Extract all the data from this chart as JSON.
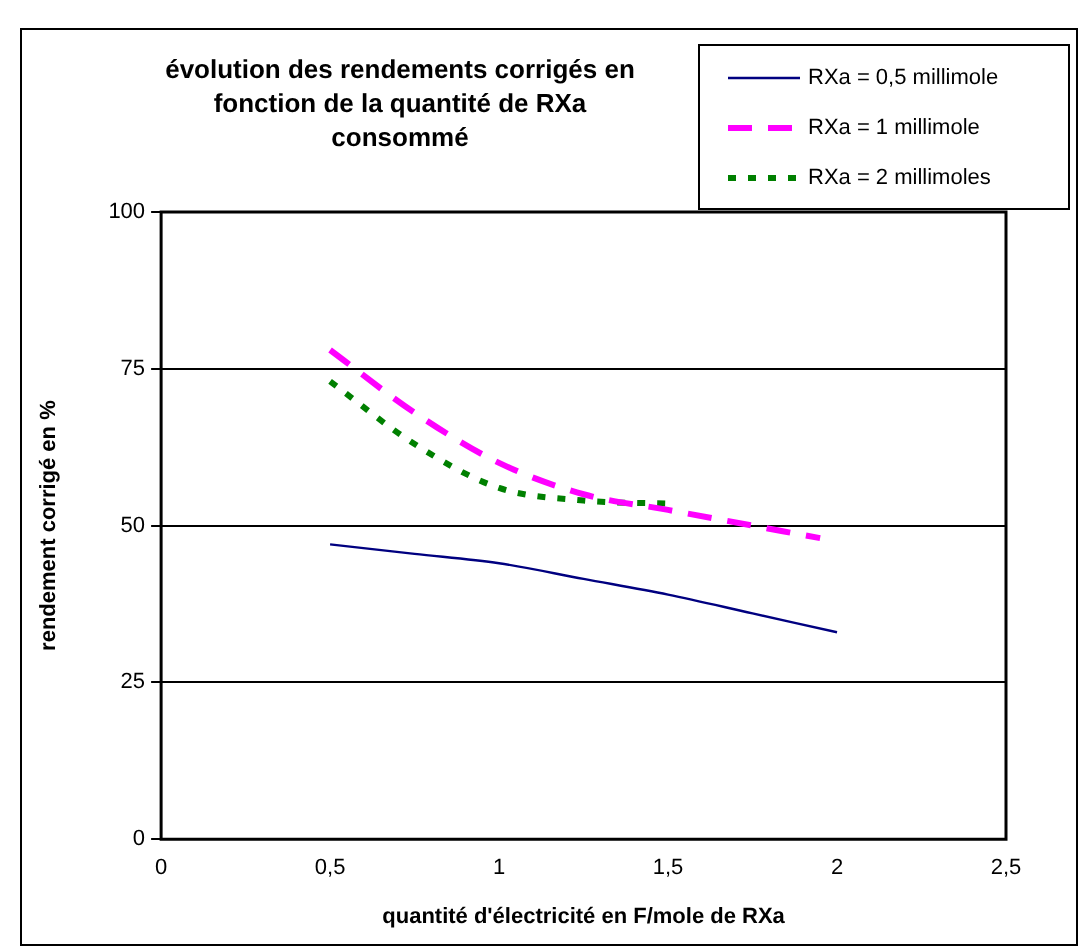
{
  "chart_data": {
    "type": "line",
    "title": "évolution des rendements corrigés en fonction de la quantité de RXa consommé",
    "xlabel": "quantité d'électricité en F/mole de RXa",
    "ylabel": "rendement corrigé en %",
    "xlim": [
      0,
      2.5
    ],
    "xticks": [
      0,
      {
        "value": 0.5,
        "label": "0,5"
      },
      1,
      {
        "value": 1.5,
        "label": "1,5"
      },
      2,
      {
        "value": 2.5,
        "label": "2,5"
      }
    ],
    "ylim": [
      0,
      100
    ],
    "yticks": [
      0,
      25,
      50,
      75,
      100
    ],
    "grid": "y",
    "legend": "top right",
    "marker": "none",
    "series": [
      {
        "name": "RXa = 0,5 millimole",
        "color": "#000080",
        "line_style": "solid",
        "x": [
          0.5,
          0.75,
          1,
          1.25,
          1.5,
          1.75,
          2
        ],
        "values": [
          47,
          45.5,
          44,
          41.5,
          39,
          36,
          33
        ]
      },
      {
        "name": "RXa = 1 millimole",
        "color": "#ff00ff",
        "line_style": "dashed",
        "x": [
          0.5,
          0.75,
          1,
          1.25,
          1.5,
          1.75,
          1.95
        ],
        "values": [
          78,
          68,
          60,
          55,
          52.5,
          50,
          48
        ]
      },
      {
        "name": "RXa = 2 millimoles",
        "color": "#008000",
        "line_style": "dotted",
        "x": [
          0.5,
          0.75,
          1,
          1.25,
          1.5
        ],
        "values": [
          73,
          63,
          56,
          54,
          53.5
        ]
      }
    ]
  }
}
